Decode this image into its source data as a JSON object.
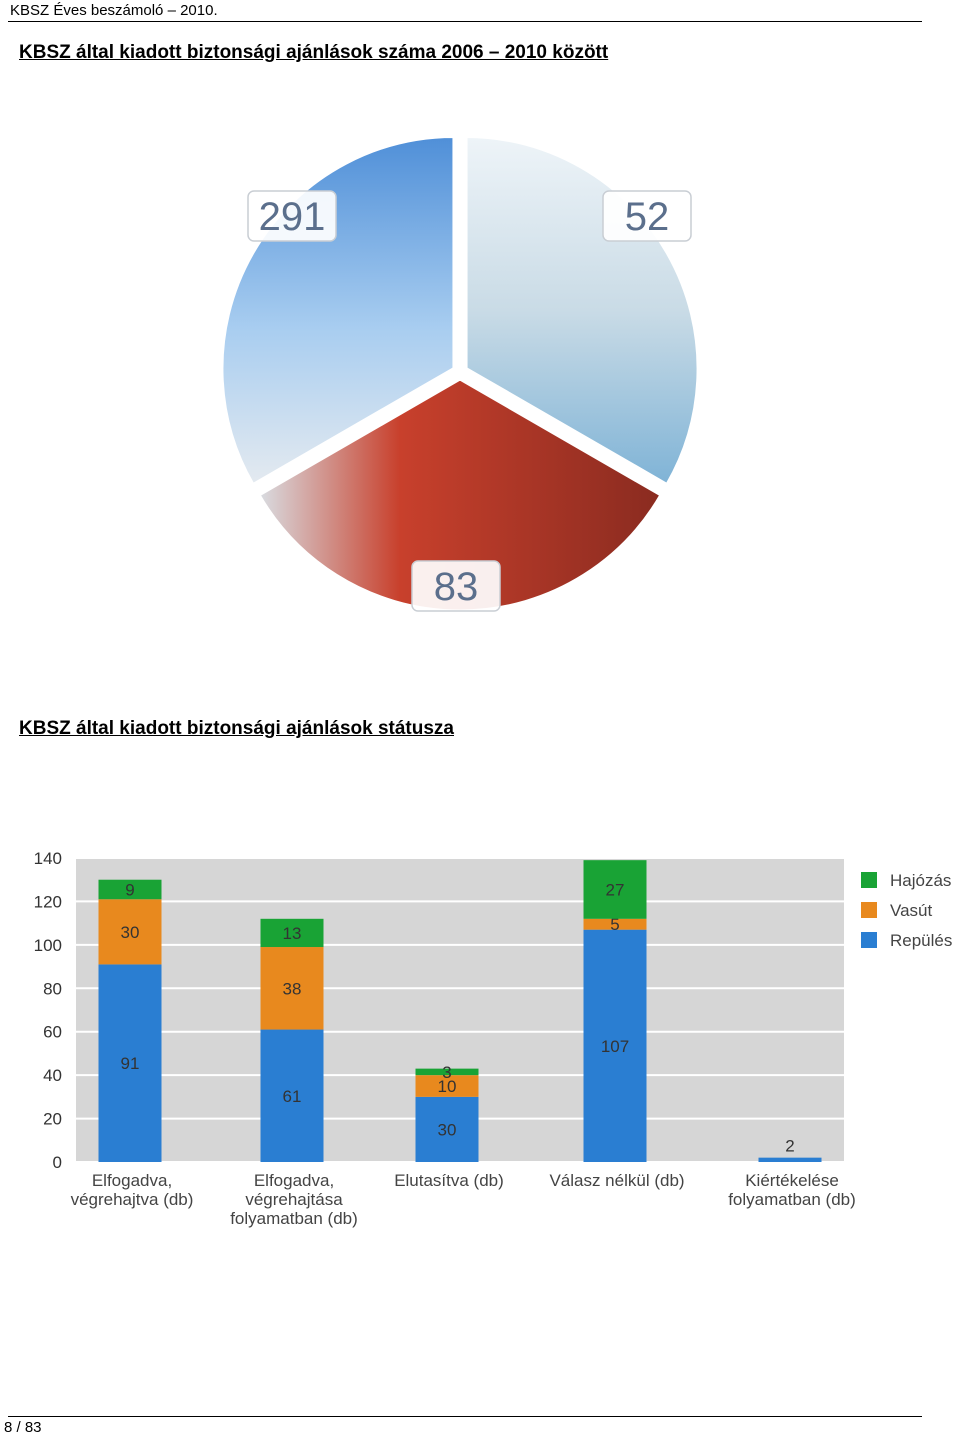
{
  "header": {
    "running_title": "KBSZ Éves beszámoló – 2010."
  },
  "section1": {
    "title": "KBSZ által kiadott biztonsági ajánlások száma 2006 – 2010 között"
  },
  "section2": {
    "title": "KBSZ által kiadott biztonsági ajánlások státusza"
  },
  "footer": {
    "page": "8 / 83"
  },
  "colors": {
    "hajozas": "#19a335",
    "vasut": "#e8891e",
    "repules": "#2a7ed2",
    "plot_bg": "#d6d6d6"
  },
  "chart_data": [
    {
      "type": "pie",
      "slices": [
        {
          "label": "291",
          "value": 291,
          "icon": "airplane-photo",
          "color": "#4f8fd8"
        },
        {
          "label": "52",
          "value": 52,
          "icon": "ship-photo",
          "color": "#7fb3d6"
        },
        {
          "label": "83",
          "value": 83,
          "icon": "locomotive-photo",
          "color": "#c8402c"
        }
      ]
    },
    {
      "type": "bar",
      "stacked": true,
      "categories": [
        [
          "Elfogadva,",
          "végrehajtva (db)"
        ],
        [
          "Elfogadva,",
          "végrehajtása",
          "folyamatban (db)"
        ],
        [
          "Elutasítva (db)"
        ],
        [
          "Válasz nélkül (db)"
        ],
        [
          "Kiértékelése",
          "folyamatban (db)"
        ]
      ],
      "series": [
        {
          "name": "Repülés",
          "color": "#2a7ed2",
          "values": [
            91,
            61,
            30,
            107,
            2
          ]
        },
        {
          "name": "Vasút",
          "color": "#e8891e",
          "values": [
            30,
            38,
            10,
            5,
            null
          ]
        },
        {
          "name": "Hajózás",
          "color": "#19a335",
          "values": [
            9,
            13,
            3,
            27,
            null
          ]
        }
      ],
      "legend_order": [
        "Hajózás",
        "Vasút",
        "Repülés"
      ],
      "legend_position": "right",
      "yticks": [
        "0",
        "20",
        "40",
        "60",
        "80",
        "100",
        "120",
        "140"
      ],
      "ylim": [
        0,
        140
      ],
      "grid": true
    }
  ]
}
